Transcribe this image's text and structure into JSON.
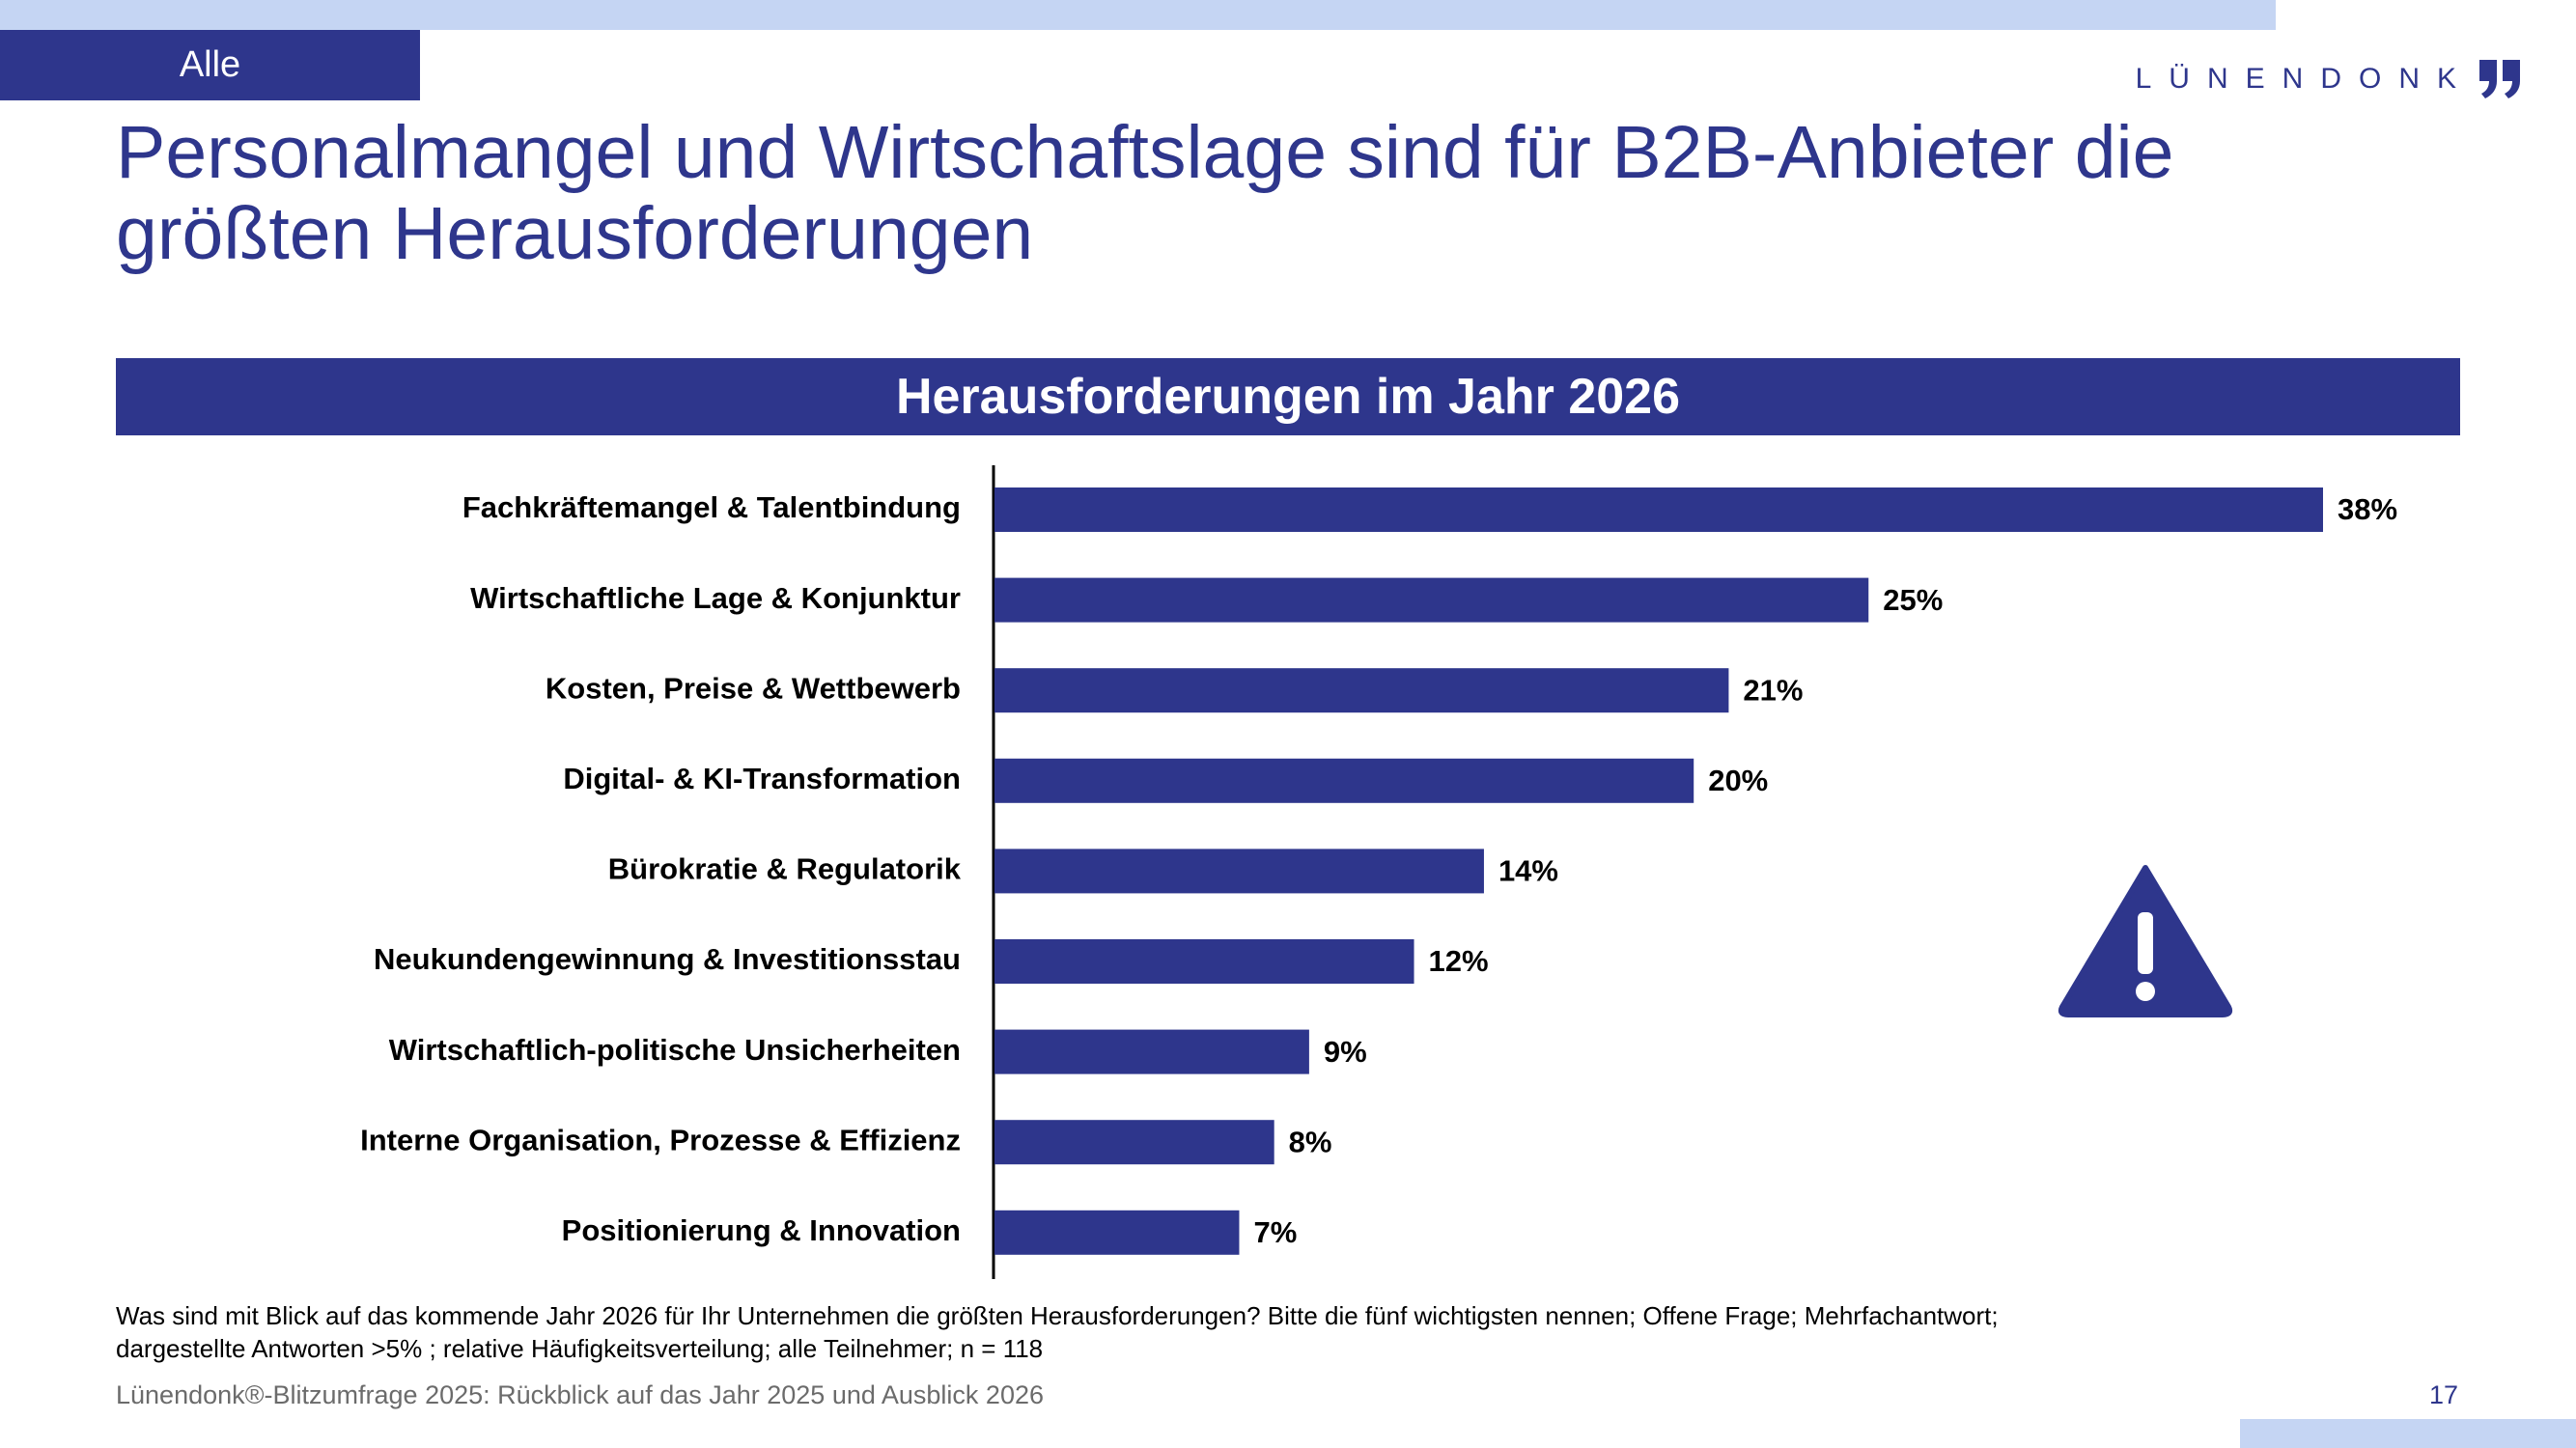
{
  "header": {
    "segment_tag": "Alle",
    "logo_text": "LÜNENDONK",
    "title_line1": "Personalmangel und Wirtschaftslage sind für B2B-Anbieter die",
    "title_line2": "größten Herausforderungen"
  },
  "colors": {
    "primary": "#2e368c",
    "light_band": "#c5d5f3"
  },
  "chart_data": {
    "type": "bar",
    "orientation": "horizontal",
    "title": "Herausforderungen im Jahr 2026",
    "categories": [
      "Fachkräftemangel & Talentbindung",
      "Wirtschaftliche Lage & Konjunktur",
      "Kosten, Preise & Wettbewerb",
      "Digital- & KI-Transformation",
      "Bürokratie & Regulatorik",
      "Neukundengewinnung & Investitionsstau",
      "Wirtschaftlich-politische Unsicherheiten",
      "Interne Organisation, Prozesse & Effizienz",
      "Positionierung & Innovation"
    ],
    "values": [
      38,
      25,
      21,
      20,
      14,
      12,
      9,
      8,
      7
    ],
    "value_labels": [
      "38%",
      "25%",
      "21%",
      "20%",
      "14%",
      "12%",
      "9%",
      "8%",
      "7%"
    ],
    "unit": "%",
    "xlim": [
      0,
      38
    ],
    "grid": false,
    "legend": "none"
  },
  "icons": {
    "warning": "warning-icon"
  },
  "footer": {
    "question_line1": "Was sind mit Blick auf das kommende Jahr 2026 für Ihr Unternehmen die größten Herausforderungen? Bitte die fünf wichtigsten nennen; Offene Frage; Mehrfachantwort;",
    "question_line2": "dargestellte Antworten >5% ; relative Häufigkeitsverteilung; alle Teilnehmer; n = 118",
    "source": "Lünendonk®-Blitzumfrage 2025: Rückblick auf das Jahr 2025 und Ausblick 2026",
    "page_number": "17"
  }
}
